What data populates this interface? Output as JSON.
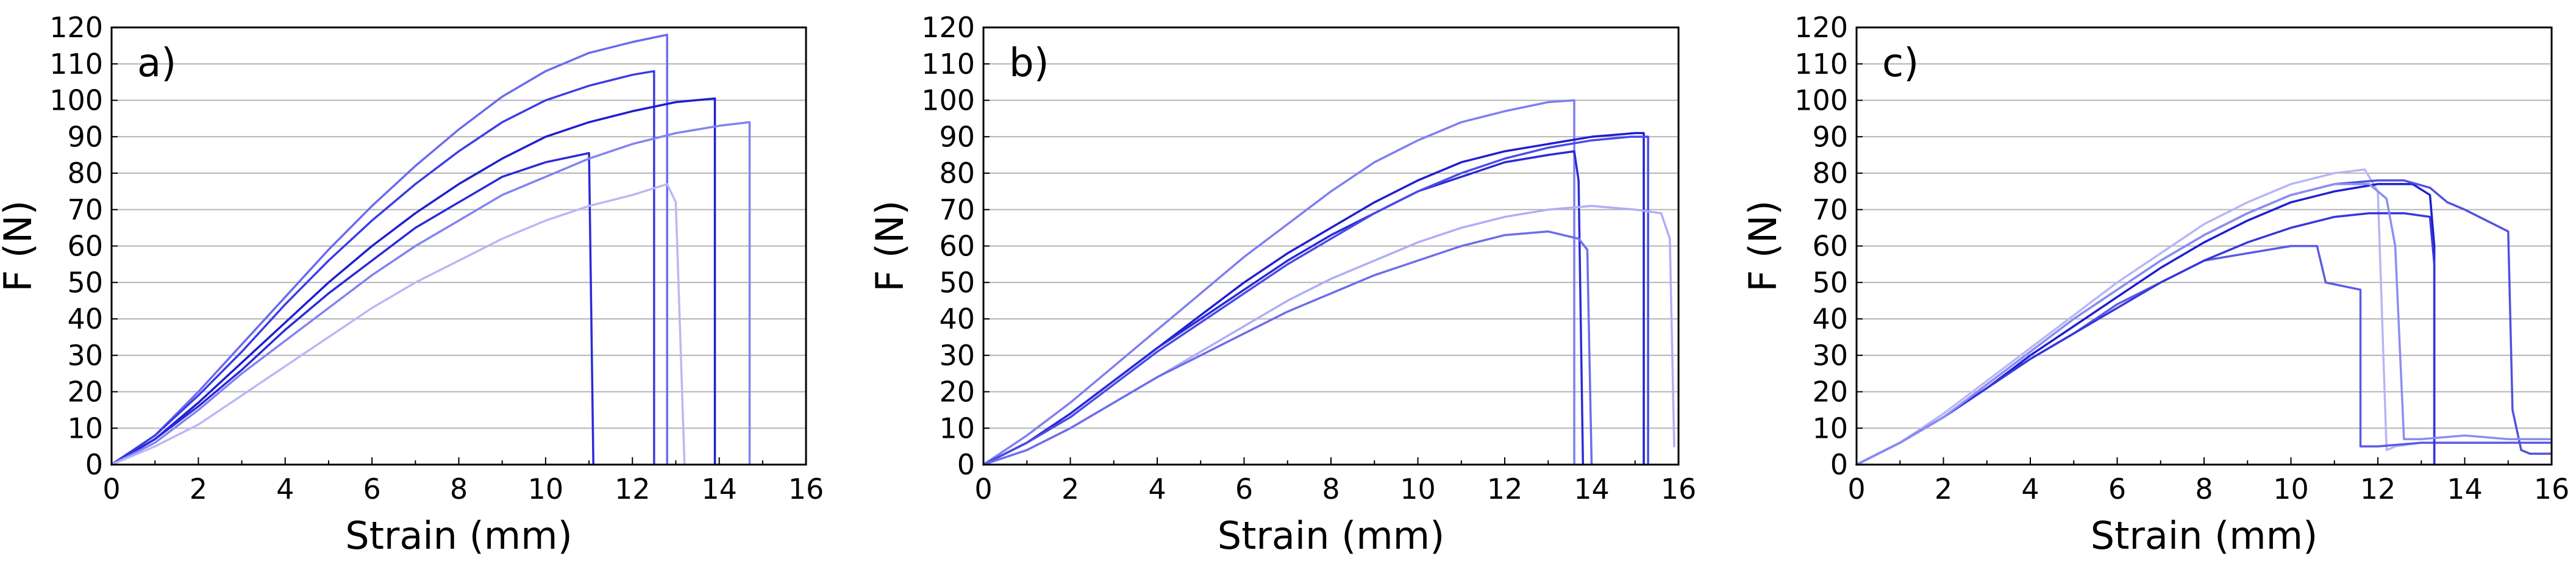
{
  "colors": {
    "grid": "#b4b4b4",
    "frame": "#000000",
    "series": [
      "#5a5af2",
      "#2424d6",
      "#3a3ae6",
      "#7676f0",
      "#b2b2f6",
      "#1b1bcc"
    ]
  },
  "chart_data": [
    {
      "type": "line",
      "panel_label": "a)",
      "xlabel": "Strain (mm)",
      "ylabel": "F (N)",
      "xlim": [
        0,
        16
      ],
      "ylim": [
        0,
        120
      ],
      "xticks": [
        "0",
        "2",
        "4",
        "6",
        "8",
        "10",
        "12",
        "14",
        "16"
      ],
      "yticks": [
        "0",
        "10",
        "20",
        "30",
        "40",
        "50",
        "60",
        "70",
        "80",
        "90",
        "100",
        "110",
        "120"
      ],
      "grid": "horizontal",
      "series": [
        {
          "color": "#6a6af2",
          "x": [
            0,
            1,
            2,
            3,
            4,
            5,
            6,
            7,
            8,
            9,
            10,
            11,
            12,
            12.8,
            12.8
          ],
          "y": [
            0,
            8,
            20,
            33,
            46,
            59,
            71,
            82,
            92,
            101,
            108,
            113,
            116,
            118,
            0
          ]
        },
        {
          "color": "#3c3ce6",
          "x": [
            0,
            1,
            2,
            3,
            4,
            5,
            6,
            7,
            8,
            9,
            10,
            11,
            12,
            12.5,
            12.5
          ],
          "y": [
            0,
            8,
            19,
            31,
            44,
            56,
            67,
            77,
            86,
            94,
            100,
            104,
            107,
            108,
            0
          ]
        },
        {
          "color": "#1e1ed0",
          "x": [
            0,
            1,
            2,
            3,
            4,
            5,
            6,
            7,
            8,
            9,
            10,
            11,
            12,
            13,
            13.9,
            13.9
          ],
          "y": [
            0,
            7,
            17,
            28,
            39,
            50,
            60,
            69,
            77,
            84,
            90,
            94,
            97,
            99.5,
            100.5,
            0
          ]
        },
        {
          "color": "#2a2ad8",
          "x": [
            0,
            1,
            2,
            3,
            4,
            5,
            6,
            7,
            8,
            9,
            10,
            11,
            11.1
          ],
          "y": [
            0,
            7,
            16,
            26,
            37,
            47,
            56,
            65,
            72,
            79,
            83,
            85.5,
            0
          ]
        },
        {
          "color": "#8282f2",
          "x": [
            0,
            1,
            2,
            3,
            4,
            5,
            6,
            7,
            8,
            9,
            10,
            11,
            12,
            13,
            14,
            14.7,
            14.7
          ],
          "y": [
            0,
            6,
            15,
            25,
            34,
            43,
            52,
            60,
            67,
            74,
            79,
            84,
            88,
            91,
            93,
            94,
            0
          ]
        },
        {
          "color": "#b8b8f6",
          "x": [
            0,
            1,
            2,
            3,
            4,
            5,
            6,
            7,
            8,
            9,
            10,
            11,
            12,
            12.8,
            13,
            13.2
          ],
          "y": [
            0,
            5,
            11,
            19,
            27,
            35,
            43,
            50,
            56,
            62,
            67,
            71,
            74,
            77,
            72,
            0
          ]
        }
      ]
    },
    {
      "type": "line",
      "panel_label": "b)",
      "xlabel": "Strain (mm)",
      "ylabel": "F (N)",
      "xlim": [
        0,
        16
      ],
      "ylim": [
        0,
        120
      ],
      "xticks": [
        "0",
        "2",
        "4",
        "6",
        "8",
        "10",
        "12",
        "14",
        "16"
      ],
      "yticks": [
        "0",
        "10",
        "20",
        "30",
        "40",
        "50",
        "60",
        "70",
        "80",
        "90",
        "100",
        "110",
        "120"
      ],
      "grid": "horizontal",
      "series": [
        {
          "color": "#7e7ef2",
          "x": [
            0,
            1,
            2,
            3,
            4,
            5,
            6,
            7,
            8,
            9,
            10,
            11,
            12,
            13,
            13.6,
            13.6
          ],
          "y": [
            0,
            8,
            17,
            27,
            37,
            47,
            57,
            66,
            75,
            83,
            89,
            94,
            97,
            99.5,
            100,
            0
          ]
        },
        {
          "color": "#1e1ed0",
          "x": [
            0,
            1,
            2,
            3,
            4,
            5,
            6,
            7,
            8,
            9,
            10,
            11,
            12,
            13,
            14,
            15,
            15.2,
            15.2
          ],
          "y": [
            0,
            6,
            14,
            23,
            32,
            41,
            50,
            58,
            65,
            72,
            78,
            83,
            86,
            88,
            90,
            91,
            91,
            0
          ]
        },
        {
          "color": "#2a2ad8",
          "x": [
            0,
            1,
            2,
            3,
            4,
            5,
            6,
            7,
            8,
            9,
            10,
            11,
            12,
            13,
            13.6,
            13.7,
            13.8
          ],
          "y": [
            0,
            6,
            14,
            23,
            32,
            40,
            48,
            56,
            63,
            69,
            75,
            79,
            83,
            85,
            86,
            78,
            0
          ]
        },
        {
          "color": "#4a4ae8",
          "x": [
            0,
            1,
            2,
            3,
            4,
            5,
            6,
            7,
            8,
            9,
            10,
            11,
            12,
            13,
            14,
            14.9,
            15.3,
            15.3
          ],
          "y": [
            0,
            6,
            13,
            22,
            31,
            39,
            47,
            55,
            62,
            69,
            75,
            80,
            84,
            87,
            89,
            90,
            90,
            0
          ]
        },
        {
          "color": "#aeaef5",
          "x": [
            0,
            1,
            2,
            3,
            4,
            5,
            6,
            7,
            8,
            9,
            10,
            11,
            12,
            13,
            14,
            15,
            15.6,
            15.8,
            15.9
          ],
          "y": [
            0,
            4,
            10,
            17,
            24,
            31,
            38,
            45,
            51,
            56,
            61,
            65,
            68,
            70,
            71,
            70,
            69,
            62,
            5
          ]
        },
        {
          "color": "#6c6cee",
          "x": [
            0,
            1,
            2,
            3,
            4,
            5,
            6,
            7,
            8,
            9,
            10,
            11,
            12,
            13,
            13.7,
            13.9,
            14.0
          ],
          "y": [
            0,
            4,
            10,
            17,
            24,
            30,
            36,
            42,
            47,
            52,
            56,
            60,
            63,
            64,
            62,
            59,
            0
          ]
        }
      ]
    },
    {
      "type": "line",
      "panel_label": "c)",
      "xlabel": "Strain (mm)",
      "ylabel": "F (N)",
      "xlim": [
        0,
        16
      ],
      "ylim": [
        0,
        120
      ],
      "xticks": [
        "0",
        "2",
        "4",
        "6",
        "8",
        "10",
        "12",
        "14",
        "16"
      ],
      "yticks": [
        "0",
        "10",
        "20",
        "30",
        "40",
        "50",
        "60",
        "70",
        "80",
        "90",
        "100",
        "110",
        "120"
      ],
      "grid": "horizontal",
      "series": [
        {
          "color": "#b6b6f6",
          "x": [
            0,
            1,
            2,
            3,
            4,
            5,
            6,
            7,
            8,
            9,
            10,
            11,
            11.7,
            12.0,
            12.2,
            12.4,
            13,
            14,
            15,
            16
          ],
          "y": [
            0,
            6,
            14,
            23,
            32,
            41,
            50,
            58,
            66,
            72,
            77,
            80,
            81,
            75,
            4,
            5,
            6,
            6,
            6,
            6
          ]
        },
        {
          "color": "#1e1ed0",
          "x": [
            0,
            1,
            2,
            3,
            4,
            5,
            6,
            7,
            8,
            9,
            10,
            11,
            12,
            12.8,
            13.2,
            13.3,
            13.3
          ],
          "y": [
            0,
            6,
            13,
            21,
            30,
            38,
            46,
            54,
            61,
            67,
            72,
            75,
            77,
            77,
            74,
            60,
            0
          ]
        },
        {
          "color": "#5a5ae6",
          "x": [
            0,
            1,
            2,
            3,
            4,
            5,
            6,
            7,
            8,
            9,
            10,
            10.6,
            10.8,
            11.6,
            11.6,
            12,
            13,
            14,
            15,
            16
          ],
          "y": [
            0,
            6,
            13,
            21,
            29,
            36,
            44,
            50,
            56,
            58,
            60,
            60,
            50,
            48,
            5,
            5,
            6,
            6,
            6,
            6
          ]
        },
        {
          "color": "#3636dc",
          "x": [
            0,
            1,
            2,
            3,
            4,
            5,
            6,
            7,
            8,
            9,
            10,
            11,
            11.8,
            12.6,
            13.2,
            13.3,
            13.3
          ],
          "y": [
            0,
            6,
            13,
            21,
            29,
            36,
            43,
            50,
            56,
            61,
            65,
            68,
            69,
            69,
            68,
            55,
            0
          ]
        },
        {
          "color": "#5050e0",
          "x": [
            0,
            1,
            2,
            3,
            4,
            5,
            6,
            7,
            8,
            9,
            10,
            11,
            12,
            12.6,
            13.2,
            13.6,
            14,
            14.5,
            15.0,
            15.1,
            15.3,
            15.5,
            16
          ],
          "y": [
            0,
            6,
            13,
            22,
            31,
            40,
            48,
            56,
            63,
            69,
            74,
            77,
            78,
            78,
            76,
            72,
            70,
            67,
            64,
            15,
            4,
            3,
            3
          ]
        },
        {
          "color": "#8c8cf2",
          "x": [
            0,
            1,
            2,
            3,
            4,
            5,
            6,
            7,
            8,
            9,
            10,
            11,
            11.8,
            12.2,
            12.4,
            12.6,
            13,
            14,
            15,
            16
          ],
          "y": [
            0,
            6,
            13,
            22,
            31,
            40,
            48,
            56,
            63,
            69,
            74,
            77,
            77,
            73,
            60,
            7,
            7,
            8,
            7,
            7
          ]
        }
      ]
    }
  ]
}
